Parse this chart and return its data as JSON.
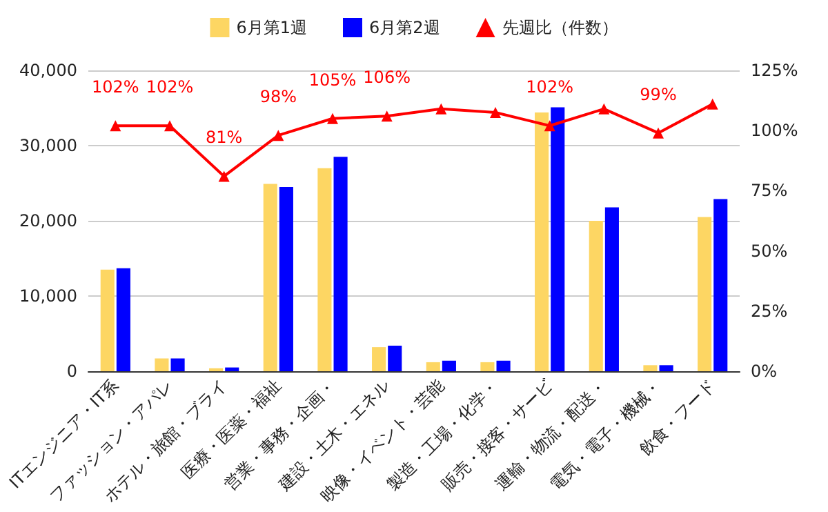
{
  "chart_data": {
    "type": "bar",
    "categories": [
      "ITエンジニア・IT系",
      "ファッション・アパレ",
      "ホテル・旅館・ブライ",
      "医療・医薬・福祉",
      "営業・事務・企画・",
      "建設・土木・エネル",
      "映像・イベント・芸能",
      "製造・工場・化学・",
      "販売・接客・サービ",
      "運輸・物流・配送・",
      "電気・電子・機械・",
      "飲食・フード"
    ],
    "series": [
      {
        "name": "6月第1週",
        "color": "#fdd663",
        "values": [
          13500,
          1700,
          400,
          24900,
          27000,
          3200,
          1200,
          1200,
          34400,
          20000,
          800,
          20500
        ]
      },
      {
        "name": "6月第2週",
        "color": "#0000ff",
        "values": [
          13700,
          1700,
          500,
          24500,
          28500,
          3400,
          1400,
          1400,
          35100,
          21800,
          800,
          22900
        ]
      },
      {
        "name": "先週比（件数）",
        "type": "line",
        "axis": "y2",
        "color": "#ff0000",
        "marker": "triangle",
        "values": [
          102,
          102,
          81,
          98,
          105,
          106,
          109,
          107.5,
          102,
          109,
          99,
          111
        ],
        "value_labels": [
          "102%",
          "102%",
          "81%",
          "98%",
          "105%",
          "106%",
          null,
          null,
          "102%",
          null,
          "99%",
          null
        ]
      }
    ],
    "ylim": [
      0,
      40000
    ],
    "yticks": [
      {
        "value": 0,
        "label": "0"
      },
      {
        "value": 10000,
        "label": "10,000"
      },
      {
        "value": 20000,
        "label": "20,000"
      },
      {
        "value": 30000,
        "label": "30,000"
      },
      {
        "value": 40000,
        "label": "40,000"
      }
    ],
    "y2lim": [
      0,
      125
    ],
    "y2ticks": [
      {
        "value": 0,
        "label": "0%"
      },
      {
        "value": 25,
        "label": "25%"
      },
      {
        "value": 50,
        "label": "50%"
      },
      {
        "value": 75,
        "label": "75%"
      },
      {
        "value": 100,
        "label": "100%"
      },
      {
        "value": 125,
        "label": "125%"
      }
    ],
    "grid": "y",
    "legend": "top"
  }
}
